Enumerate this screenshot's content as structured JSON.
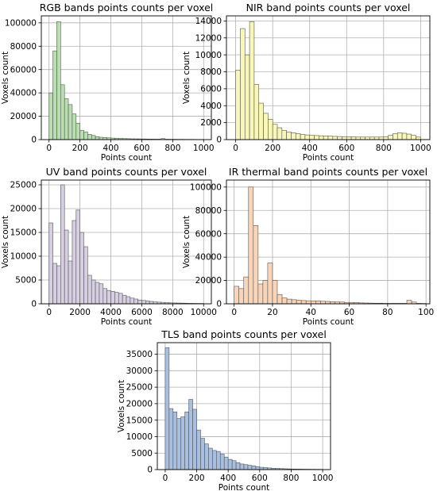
{
  "figure": {
    "background": "#ffffff"
  },
  "chart_data": [
    {
      "type": "bar",
      "title": "RGB bands points counts per voxel",
      "xlabel": "Points count",
      "ylabel": "Voxels count",
      "color": "#b9dfb1",
      "edge_color": "#555555",
      "grid": true,
      "xlim": [
        -50,
        1050
      ],
      "ylim": [
        0,
        106000
      ],
      "xticks": [
        0,
        200,
        400,
        600,
        800,
        1000
      ],
      "xtick_labels": [
        "0",
        "200",
        "400",
        "600",
        "800",
        "1000"
      ],
      "yticks": [
        0,
        20000,
        40000,
        60000,
        80000,
        100000
      ],
      "ytick_labels": [
        "0",
        "20000",
        "40000",
        "60000",
        "80000",
        "100000"
      ],
      "bin_start": 0,
      "bin_width": 25,
      "values": [
        40000,
        76000,
        101000,
        47000,
        35000,
        30000,
        22000,
        14000,
        8000,
        6500,
        4500,
        3500,
        2500,
        2000,
        1800,
        1500,
        1300,
        1200,
        1000,
        900,
        800,
        700,
        650,
        600,
        550,
        500,
        450,
        400,
        400,
        900,
        350,
        300,
        300,
        250,
        250,
        200,
        200,
        200,
        150,
        150
      ]
    },
    {
      "type": "bar",
      "title": "NIR band points counts per voxel",
      "xlabel": "Points count",
      "ylabel": "Voxels count",
      "color": "#f8f7b8",
      "edge_color": "#555555",
      "grid": true,
      "xlim": [
        -50,
        1050
      ],
      "ylim": [
        0,
        14600
      ],
      "xticks": [
        0,
        200,
        400,
        600,
        800,
        1000
      ],
      "xtick_labels": [
        "0",
        "200",
        "400",
        "600",
        "800",
        "1000"
      ],
      "yticks": [
        0,
        2000,
        4000,
        6000,
        8000,
        10000,
        12000,
        14000
      ],
      "ytick_labels": [
        "0",
        "2000",
        "4000",
        "6000",
        "8000",
        "10000",
        "12000",
        "14000"
      ],
      "bin_start": 0,
      "bin_width": 25,
      "values": [
        8200,
        13100,
        10000,
        13900,
        6500,
        4300,
        3100,
        2400,
        1800,
        1400,
        1100,
        900,
        800,
        700,
        600,
        550,
        500,
        480,
        450,
        430,
        400,
        380,
        360,
        350,
        330,
        320,
        300,
        300,
        300,
        300,
        300,
        300,
        350,
        500,
        700,
        800,
        750,
        650,
        500,
        300
      ]
    },
    {
      "type": "bar",
      "title": "UV band points counts per voxel",
      "xlabel": "Points count",
      "ylabel": "Voxels count",
      "color": "#d6cfe2",
      "edge_color": "#555555",
      "grid": true,
      "xlim": [
        -500,
        10500
      ],
      "ylim": [
        0,
        26000
      ],
      "xticks": [
        0,
        2000,
        4000,
        6000,
        8000,
        10000
      ],
      "xtick_labels": [
        "0",
        "2000",
        "4000",
        "6000",
        "8000",
        "10000"
      ],
      "yticks": [
        0,
        5000,
        10000,
        15000,
        20000,
        25000
      ],
      "ytick_labels": [
        "0",
        "5000",
        "10000",
        "15000",
        "20000",
        "25000"
      ],
      "bin_start": 0,
      "bin_width": 250,
      "values": [
        17000,
        8500,
        8000,
        25000,
        15500,
        9000,
        17500,
        19700,
        15000,
        12000,
        6000,
        5000,
        4500,
        4200,
        3200,
        2800,
        2600,
        2400,
        2200,
        1800,
        1500,
        1200,
        1000,
        800,
        700,
        600,
        500,
        400,
        350,
        300,
        250,
        200,
        180,
        160,
        140,
        120,
        100,
        90,
        80,
        70
      ]
    },
    {
      "type": "bar",
      "title": "IR thermal band points counts per voxel",
      "xlabel": "Points count",
      "ylabel": "Voxels count",
      "color": "#f9d4b7",
      "edge_color": "#555555",
      "grid": true,
      "xlim": [
        -4,
        102
      ],
      "ylim": [
        0,
        106000
      ],
      "xticks": [
        0,
        20,
        40,
        60,
        80,
        100
      ],
      "xtick_labels": [
        "0",
        "20",
        "40",
        "60",
        "80",
        "100"
      ],
      "yticks": [
        0,
        20000,
        40000,
        60000,
        80000,
        100000
      ],
      "ytick_labels": [
        "0",
        "20000",
        "40000",
        "60000",
        "80000",
        "100000"
      ],
      "bin_start": 0,
      "bin_width": 2.5,
      "values": [
        15000,
        13000,
        23000,
        100000,
        67000,
        17000,
        20000,
        35000,
        20000,
        8000,
        5000,
        4000,
        3500,
        3000,
        2800,
        2600,
        2500,
        2500,
        2200,
        2000,
        1800,
        1600,
        1500,
        1200,
        1000,
        1000,
        800,
        700,
        600,
        500,
        500,
        400,
        400,
        400,
        400,
        400,
        3000,
        1500,
        400,
        300
      ]
    },
    {
      "type": "bar",
      "title": "TLS band points counts per voxel",
      "xlabel": "Points count",
      "ylabel": "Voxels count",
      "color": "#a9bfdf",
      "edge_color": "#555555",
      "grid": true,
      "xlim": [
        -50,
        1050
      ],
      "ylim": [
        0,
        38500
      ],
      "xticks": [
        0,
        200,
        400,
        600,
        800,
        1000
      ],
      "xtick_labels": [
        "0",
        "200",
        "400",
        "600",
        "800",
        "1000"
      ],
      "yticks": [
        0,
        5000,
        10000,
        15000,
        20000,
        25000,
        30000,
        35000
      ],
      "ytick_labels": [
        "0",
        "5000",
        "10000",
        "15000",
        "20000",
        "25000",
        "30000",
        "35000"
      ],
      "bin_start": 0,
      "bin_width": 25,
      "values": [
        37000,
        18500,
        17500,
        15500,
        16000,
        17500,
        21300,
        18300,
        12000,
        9500,
        7800,
        6500,
        5800,
        5500,
        4700,
        3800,
        3100,
        2700,
        2100,
        1700,
        1500,
        1300,
        1100,
        900,
        700,
        600,
        500,
        400,
        350,
        300,
        250,
        200,
        180,
        160,
        140,
        120,
        110,
        100,
        90,
        80
      ]
    }
  ]
}
